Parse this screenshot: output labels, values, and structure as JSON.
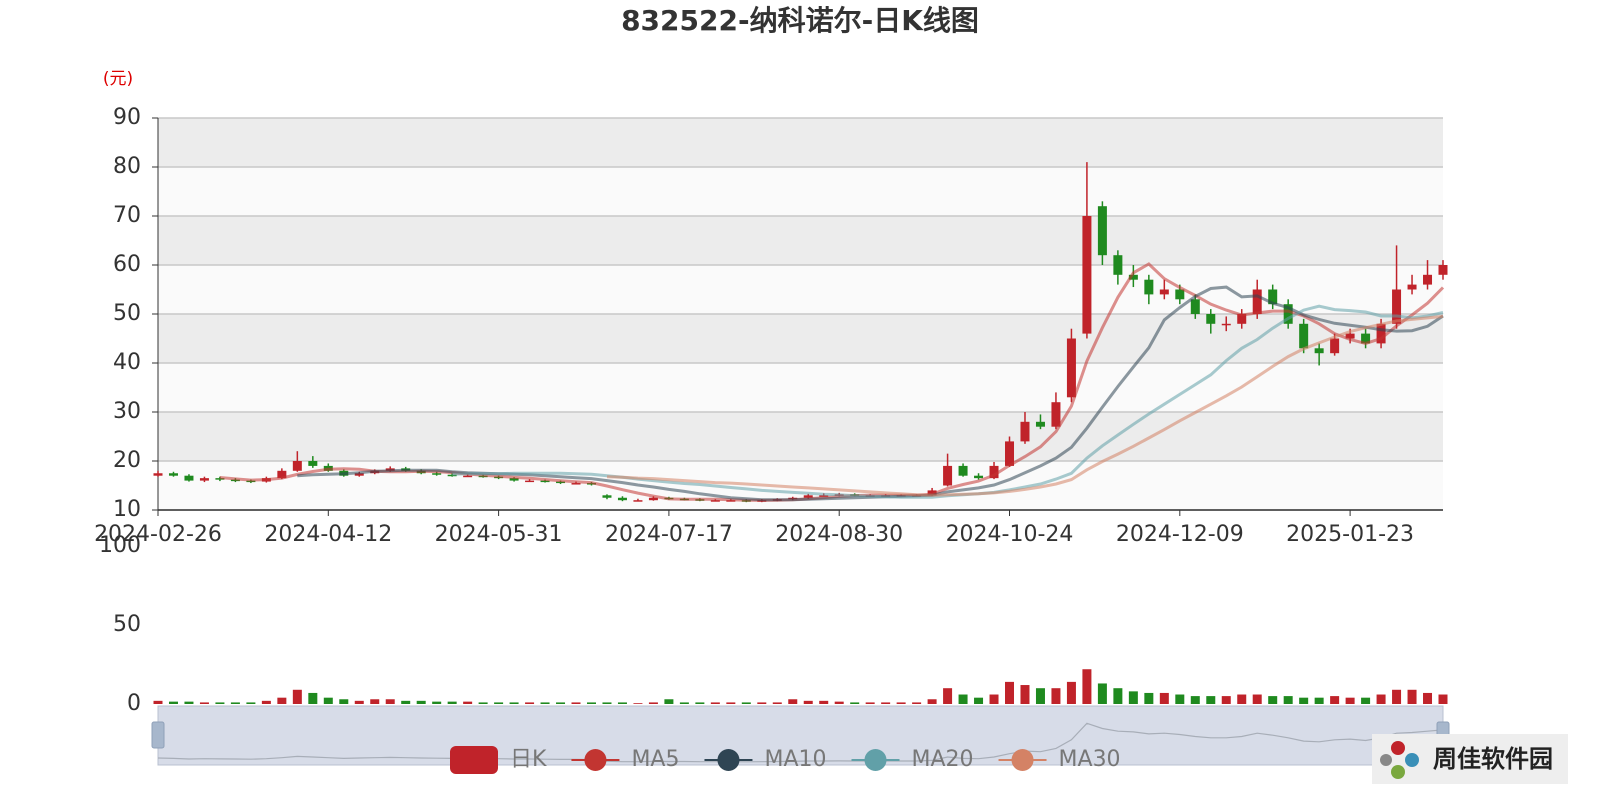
{
  "chart_data": {
    "type": "candlestick",
    "title": "832522-纳科诺尔-日K线图",
    "y_unit": "(元)",
    "categories": [
      "2024-02-26",
      null,
      null,
      null,
      null,
      null,
      null,
      null,
      null,
      null,
      null,
      "2024-04-12",
      null,
      null,
      null,
      null,
      null,
      null,
      null,
      null,
      null,
      null,
      "2024-05-31",
      null,
      null,
      null,
      null,
      null,
      null,
      null,
      null,
      null,
      null,
      "2024-07-17",
      null,
      null,
      null,
      null,
      null,
      null,
      null,
      null,
      null,
      null,
      "2024-08-30",
      null,
      null,
      null,
      null,
      null,
      null,
      null,
      null,
      null,
      null,
      "2024-10-24",
      null,
      null,
      null,
      null,
      null,
      null,
      null,
      null,
      null,
      null,
      "2024-12-09",
      null,
      null,
      null,
      null,
      null,
      null,
      null,
      null,
      null,
      null,
      "2025-01-23",
      null,
      null,
      null,
      null,
      null,
      null
    ],
    "candle_name": "日K",
    "up_color": "#c0232a",
    "down_color": "#1f8a1f",
    "ohlc": {
      "open": [
        17,
        17.5,
        17,
        16,
        16.5,
        16.2,
        16,
        15.8,
        16.5,
        18,
        20,
        19,
        18,
        17,
        17.5,
        18,
        18.5,
        18,
        17.5,
        17.2,
        17,
        17,
        16.8,
        16.5,
        16,
        16,
        15.8,
        15.5,
        15.5,
        13,
        12.5,
        12,
        12,
        12.5,
        12.3,
        12.2,
        12,
        12,
        12,
        11.8,
        12,
        12.2,
        12.5,
        13,
        13,
        13.2,
        13,
        13,
        13,
        13,
        13,
        15,
        19,
        17,
        16.5,
        19,
        24,
        28,
        27,
        33,
        46,
        72,
        62,
        58,
        57,
        54,
        55,
        53,
        50,
        48,
        48,
        50,
        55,
        52,
        48,
        43,
        42,
        45,
        46,
        44,
        48,
        55,
        56,
        58
      ],
      "close": [
        17.5,
        17,
        16,
        16.5,
        16.2,
        16,
        15.8,
        16.5,
        18,
        20,
        19,
        18,
        17,
        17.5,
        18,
        18.5,
        18,
        17.5,
        17.2,
        17,
        17,
        16.8,
        16.5,
        16,
        16,
        15.8,
        15.5,
        15.5,
        15.2,
        12.5,
        12,
        12,
        12.5,
        12.3,
        12.2,
        12,
        12,
        12,
        11.8,
        12,
        12.2,
        12.5,
        13,
        13,
        13.2,
        13,
        13,
        13,
        13,
        13,
        14,
        19,
        17,
        16.5,
        19,
        24,
        28,
        27,
        32,
        45,
        70,
        62,
        58,
        57,
        54,
        55,
        53,
        50,
        48,
        48,
        50,
        55,
        52,
        48,
        43,
        42,
        45,
        46,
        44,
        48,
        55,
        56,
        58,
        60
      ],
      "low": [
        16.8,
        16.8,
        15.8,
        15.7,
        15.9,
        15.7,
        15.5,
        15.6,
        16.3,
        17.8,
        18.6,
        17.8,
        16.8,
        16.8,
        17.3,
        17.8,
        17.8,
        17.3,
        17,
        16.8,
        16.8,
        16.6,
        16.3,
        15.8,
        15.8,
        15.6,
        15.3,
        15.3,
        15,
        12.2,
        11.8,
        11.8,
        11.9,
        12.1,
        12,
        11.8,
        11.8,
        11.8,
        11.6,
        11.6,
        11.8,
        12,
        12.3,
        12.8,
        12.8,
        12.8,
        12.8,
        12.8,
        12.8,
        12.8,
        12.9,
        14.8,
        16.8,
        16.2,
        16.3,
        18.8,
        23.5,
        26.5,
        26.5,
        32,
        45,
        60,
        56,
        55.5,
        52,
        53,
        52,
        49,
        46,
        46.5,
        47,
        49,
        51,
        47,
        42,
        39.5,
        41.5,
        44,
        43,
        43,
        47,
        54,
        55,
        57
      ],
      "high": [
        18,
        17.8,
        17.3,
        16.8,
        16.8,
        16.5,
        16.2,
        16.8,
        18.5,
        22,
        21,
        19.5,
        18.3,
        17.8,
        18.3,
        18.9,
        18.8,
        18.3,
        17.8,
        17.5,
        17.3,
        17.2,
        17,
        16.7,
        16.3,
        16.2,
        16,
        15.8,
        15.7,
        13.2,
        12.8,
        12.3,
        12.8,
        12.7,
        12.5,
        12.4,
        12.2,
        12.2,
        12.2,
        12.2,
        12.4,
        12.7,
        13.3,
        13.4,
        13.5,
        13.4,
        13.2,
        13.2,
        13.2,
        13.2,
        14.5,
        21.5,
        19.5,
        17.5,
        19.8,
        25,
        30,
        29.5,
        34,
        47,
        81,
        73,
        63,
        60,
        58,
        57,
        56,
        54,
        51,
        49.5,
        51,
        57,
        56,
        53,
        49,
        44,
        46,
        47,
        47,
        49,
        64,
        58,
        61,
        61
      ]
    },
    "series": [
      {
        "name": "MA5",
        "color": "#c23531",
        "values": [
          null,
          null,
          null,
          null,
          16.64,
          16.34,
          16.1,
          16.2,
          16.5,
          17.26,
          17.86,
          18.3,
          18.4,
          18.3,
          17.9,
          17.8,
          17.8,
          17.9,
          17.84,
          17.64,
          17.34,
          17.1,
          16.9,
          16.66,
          16.46,
          16.22,
          15.96,
          15.76,
          15.6,
          14.9,
          14.14,
          13.44,
          12.84,
          12.26,
          12.2,
          12.2,
          12.2,
          12.1,
          12,
          11.96,
          12,
          12.1,
          12.3,
          12.54,
          12.78,
          12.94,
          13.04,
          13.04,
          13.04,
          13,
          13.2,
          14.4,
          15.2,
          15.9,
          17.1,
          19.1,
          20.9,
          22.9,
          26,
          31.2,
          40.4,
          47.2,
          53.4,
          58.4,
          60.2,
          57.2,
          55.4,
          53.8,
          52,
          50.8,
          49.8,
          50.2,
          50.6,
          50.6,
          49.6,
          48,
          46,
          44.8,
          44,
          45,
          47.6,
          49.8,
          52.2,
          55.4
        ]
      },
      {
        "name": "MA10",
        "color": "#2f4554",
        "values": [
          null,
          null,
          null,
          null,
          null,
          null,
          null,
          null,
          null,
          17.0,
          17.2,
          17.3,
          17.4,
          17.6,
          17.9,
          18.0,
          18.1,
          18.1,
          18.1,
          17.8,
          17.6,
          17.5,
          17.4,
          17.3,
          17.2,
          17.0,
          16.8,
          16.6,
          16.4,
          16.0,
          15.6,
          15.1,
          14.7,
          14.2,
          13.8,
          13.3,
          12.9,
          12.5,
          12.3,
          12.1,
          12.1,
          12.1,
          12.2,
          12.3,
          12.4,
          12.5,
          12.6,
          12.7,
          12.8,
          12.9,
          13.0,
          13.7,
          14.1,
          14.5,
          15.1,
          16.2,
          17.6,
          19.0,
          20.6,
          22.8,
          26.7,
          31.0,
          35.2,
          39.2,
          43.1,
          48.8,
          51.3,
          53.6,
          55.2,
          55.5,
          53.5,
          53.7,
          52.2,
          51.3,
          49.8,
          48.9,
          48.1,
          47.7,
          47.3,
          46.8,
          46.5,
          46.6,
          47.5,
          49.6
        ]
      },
      {
        "name": "MA20",
        "color": "#61a0a8",
        "values": [
          null,
          null,
          null,
          null,
          null,
          null,
          null,
          null,
          null,
          null,
          null,
          null,
          null,
          null,
          null,
          null,
          null,
          null,
          null,
          17.3,
          17.4,
          17.4,
          17.4,
          17.5,
          17.5,
          17.5,
          17.5,
          17.4,
          17.3,
          17.0,
          16.7,
          16.3,
          16.0,
          15.7,
          15.4,
          15.2,
          14.9,
          14.6,
          14.3,
          14.0,
          13.8,
          13.6,
          13.4,
          13.2,
          13.1,
          12.9,
          12.8,
          12.7,
          12.6,
          12.6,
          12.6,
          12.9,
          13.1,
          13.3,
          13.6,
          14.1,
          14.7,
          15.3,
          16.3,
          17.5,
          20.6,
          23.1,
          25.3,
          27.5,
          29.6,
          31.6,
          33.6,
          35.6,
          37.6,
          40.5,
          43.0,
          44.8,
          47.1,
          49.1,
          50.8,
          51.6,
          50.9,
          50.7,
          50.4,
          49.6,
          49.6,
          49.2,
          49.6,
          50.3
        ]
      },
      {
        "name": "MA30",
        "color": "#d48265",
        "values": [
          null,
          null,
          null,
          null,
          null,
          null,
          null,
          null,
          null,
          null,
          null,
          null,
          null,
          null,
          null,
          null,
          null,
          null,
          null,
          null,
          null,
          null,
          null,
          null,
          null,
          null,
          null,
          null,
          null,
          16.8,
          16.7,
          16.5,
          16.4,
          16.2,
          16.0,
          15.8,
          15.6,
          15.5,
          15.3,
          15.1,
          14.9,
          14.7,
          14.5,
          14.3,
          14.1,
          13.9,
          13.7,
          13.5,
          13.3,
          13.1,
          13.0,
          13.1,
          13.2,
          13.3,
          13.5,
          13.8,
          14.2,
          14.7,
          15.3,
          16.2,
          18.2,
          19.9,
          21.4,
          23.0,
          24.7,
          26.4,
          28.2,
          29.9,
          31.6,
          33.3,
          35.1,
          37.2,
          39.3,
          41.3,
          42.9,
          44.1,
          45.3,
          46.4,
          47.2,
          47.9,
          48.6,
          48.9,
          49.2,
          49.5
        ]
      }
    ],
    "ylim": [
      10,
      90
    ],
    "yticks": [
      10,
      20,
      30,
      40,
      50,
      60,
      70,
      80,
      90
    ],
    "grid": true,
    "volume": {
      "values": [
        2,
        1.5,
        1.5,
        1,
        1,
        1,
        1,
        2,
        4,
        9,
        7,
        4,
        3,
        2,
        3,
        3,
        2,
        2,
        1.5,
        1.5,
        1.5,
        1,
        1,
        1,
        1,
        1,
        1,
        1,
        1,
        1,
        1,
        0.5,
        1,
        3,
        1,
        1,
        1,
        1,
        1,
        1,
        1,
        3,
        2,
        2,
        1.5,
        1,
        1,
        1,
        1,
        1,
        3,
        10,
        6,
        4,
        6,
        14,
        12,
        10,
        10,
        14,
        22,
        13,
        10,
        8,
        7,
        7,
        6,
        5,
        5,
        5,
        6,
        6,
        5,
        5,
        4,
        4,
        5,
        4,
        4,
        6,
        9,
        9,
        7,
        6
      ],
      "ylim": [
        0,
        100
      ],
      "yticks": [
        0,
        50,
        100
      ]
    }
  },
  "watermark": "周佳软件园"
}
